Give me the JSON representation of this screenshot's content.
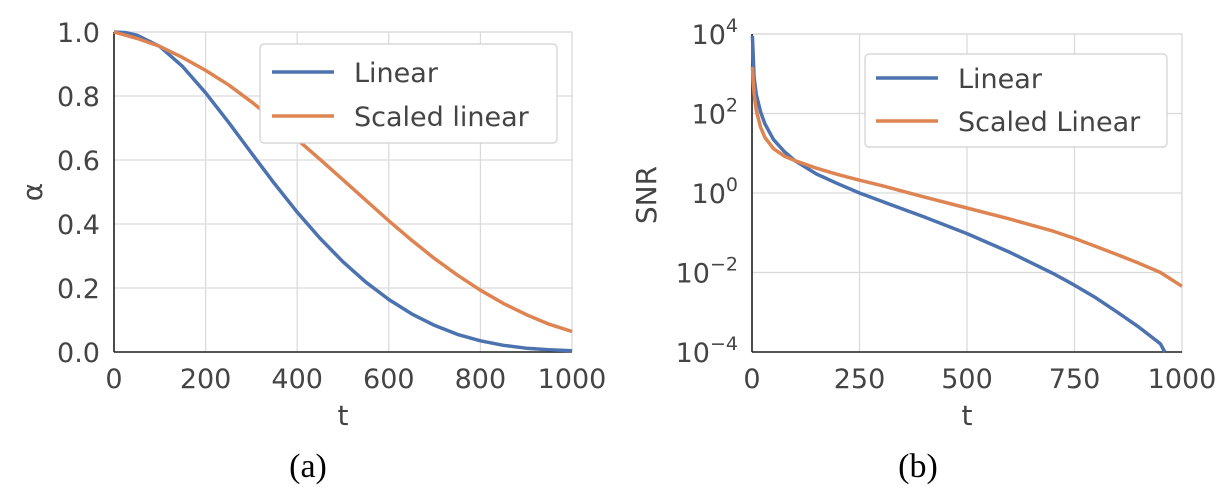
{
  "chart_data": [
    {
      "type": "line",
      "caption": "(a)",
      "xlabel": "t",
      "ylabel": "α",
      "xlim": [
        0,
        1000
      ],
      "ylim": [
        0,
        1
      ],
      "yscale": "linear",
      "xticks": [
        "0",
        "200",
        "400",
        "600",
        "800",
        "1000"
      ],
      "yticks": [
        "0.0",
        "0.2",
        "0.4",
        "0.6",
        "0.8",
        "1.0"
      ],
      "grid": true,
      "legend_position": "top-right",
      "x": [
        0,
        25,
        50,
        100,
        150,
        200,
        250,
        300,
        350,
        400,
        450,
        500,
        550,
        600,
        650,
        700,
        750,
        800,
        850,
        900,
        950,
        1000
      ],
      "series": [
        {
          "name": "Linear",
          "color": "#4c72b0",
          "values": [
            1.0,
            0.998,
            0.99,
            0.955,
            0.892,
            0.81,
            0.718,
            0.622,
            0.527,
            0.437,
            0.355,
            0.282,
            0.218,
            0.164,
            0.119,
            0.083,
            0.055,
            0.035,
            0.021,
            0.012,
            0.007,
            0.004
          ]
        },
        {
          "name": "Scaled linear",
          "color": "#dd8452",
          "values": [
            1.0,
            0.99,
            0.98,
            0.955,
            0.92,
            0.88,
            0.835,
            0.782,
            0.725,
            0.664,
            0.602,
            0.538,
            0.474,
            0.41,
            0.349,
            0.292,
            0.24,
            0.193,
            0.152,
            0.117,
            0.087,
            0.064
          ]
        }
      ]
    },
    {
      "type": "line",
      "caption": "(b)",
      "xlabel": "t",
      "ylabel": "SNR",
      "xlim": [
        0,
        1000
      ],
      "ylim": [
        0.0001,
        10000
      ],
      "yscale": "log",
      "xticks": [
        "0",
        "250",
        "500",
        "750",
        "1000"
      ],
      "yticks": [
        {
          "base": "10",
          "exp": "−4"
        },
        {
          "base": "10",
          "exp": "−2"
        },
        {
          "base": "10",
          "exp": "0"
        },
        {
          "base": "10",
          "exp": "2"
        },
        {
          "base": "10",
          "exp": "4"
        }
      ],
      "grid": true,
      "legend_position": "top-right",
      "x": [
        1,
        5,
        10,
        20,
        30,
        50,
        75,
        100,
        150,
        200,
        250,
        300,
        400,
        500,
        600,
        700,
        750,
        800,
        850,
        900,
        950,
        960
      ],
      "series": [
        {
          "name": "Linear",
          "color": "#4c72b0",
          "values": [
            9000,
            800,
            300,
            110,
            55,
            22,
            11,
            6.5,
            3.0,
            1.7,
            1.0,
            0.63,
            0.25,
            0.095,
            0.032,
            0.0095,
            0.0048,
            0.0023,
            0.001,
            0.00042,
            0.00016,
            0.0001
          ]
        },
        {
          "name": "Scaled Linear",
          "color": "#dd8452",
          "x": [
            1,
            5,
            10,
            20,
            30,
            50,
            75,
            100,
            150,
            200,
            250,
            300,
            400,
            500,
            600,
            700,
            750,
            800,
            850,
            900,
            950,
            1000
          ],
          "values": [
            1500,
            300,
            120,
            45,
            25,
            13,
            8.5,
            6.5,
            4.2,
            2.9,
            2.1,
            1.55,
            0.8,
            0.42,
            0.22,
            0.11,
            0.072,
            0.045,
            0.028,
            0.017,
            0.01,
            0.0045
          ]
        }
      ]
    }
  ]
}
